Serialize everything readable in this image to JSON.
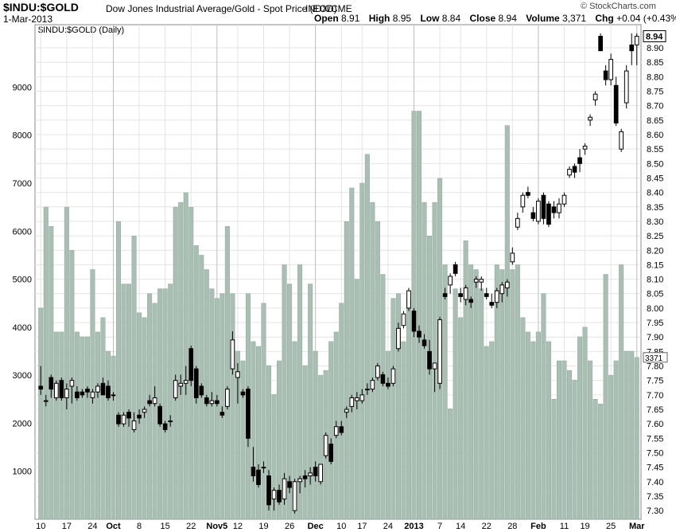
{
  "header": {
    "symbol": "$INDU:$GOLD",
    "name": "Dow Jones Industrial Average/Gold - Spot Price (EOD)",
    "exchange": "INDX/CME",
    "date": "1-Mar-2013",
    "brand": "© StockCharts.com",
    "open_label": "Open",
    "open": "8.91",
    "high_label": "High",
    "high": "8.95",
    "low_label": "Low",
    "low": "8.84",
    "close_label": "Close",
    "close": "8.94",
    "volume_label": "Volume",
    "volume": "3,371",
    "chg_label": "Chg",
    "chg": "+0.04 (+0.43%)"
  },
  "chart_data": {
    "type": "candlestick",
    "title": "$INDU:$GOLD (Daily)",
    "price_axis": {
      "ticks": [
        "7.30",
        "7.35",
        "7.40",
        "7.45",
        "7.50",
        "7.55",
        "7.60",
        "7.65",
        "7.70",
        "7.75",
        "7.80",
        "7.85",
        "7.90",
        "7.95",
        "8.00",
        "8.05",
        "8.10",
        "8.15",
        "8.20",
        "8.25",
        "8.30",
        "8.35",
        "8.40",
        "8.45",
        "8.50",
        "8.55",
        "8.60",
        "8.65",
        "8.70",
        "8.75",
        "8.80",
        "8.85",
        "8.90"
      ],
      "range": [
        7.27,
        8.98
      ],
      "last_value": "8.94"
    },
    "volume_axis": {
      "ticks": [
        "1000",
        "2000",
        "3000",
        "4000",
        "5000",
        "6000",
        "7000",
        "8000",
        "9000"
      ],
      "range": [
        0,
        10300
      ],
      "last_value": "3371"
    },
    "x_labels": [
      "10",
      "17",
      "24",
      "Oct",
      "8",
      "15",
      "22",
      "Nov5",
      "12",
      "19",
      "26",
      "Dec",
      "10",
      "17",
      "24",
      "2013",
      "7",
      "14",
      "22",
      "28",
      "Feb",
      "11",
      "19",
      "25",
      "Mar"
    ],
    "grid": true,
    "candles": [
      {
        "o": 7.73,
        "h": 7.8,
        "l": 7.7,
        "c": 7.72,
        "v": 4400
      },
      {
        "o": 7.68,
        "h": 7.7,
        "l": 7.66,
        "c": 7.68,
        "v": 6500
      },
      {
        "o": 7.76,
        "h": 7.77,
        "l": 7.69,
        "c": 7.72,
        "v": 6100
      },
      {
        "o": 7.69,
        "h": 7.75,
        "l": 7.68,
        "c": 7.74,
        "v": 3900
      },
      {
        "o": 7.75,
        "h": 7.76,
        "l": 7.68,
        "c": 7.69,
        "v": 3900
      },
      {
        "o": 7.69,
        "h": 7.74,
        "l": 7.65,
        "c": 7.72,
        "v": 6500
      },
      {
        "o": 7.73,
        "h": 7.76,
        "l": 7.67,
        "c": 7.75,
        "v": 5600
      },
      {
        "o": 7.71,
        "h": 7.73,
        "l": 7.68,
        "c": 7.69,
        "v": 3900
      },
      {
        "o": 7.71,
        "h": 7.72,
        "l": 7.69,
        "c": 7.7,
        "v": 3800
      },
      {
        "o": 7.72,
        "h": 7.73,
        "l": 7.69,
        "c": 7.71,
        "v": 3800
      },
      {
        "o": 7.69,
        "h": 7.72,
        "l": 7.67,
        "c": 7.71,
        "v": 5200
      },
      {
        "o": 7.71,
        "h": 7.74,
        "l": 7.69,
        "c": 7.73,
        "v": 3900
      },
      {
        "o": 7.74,
        "h": 7.76,
        "l": 7.7,
        "c": 7.7,
        "v": 4200
      },
      {
        "o": 7.73,
        "h": 7.75,
        "l": 7.68,
        "c": 7.69,
        "v": 3500
      },
      {
        "o": 7.7,
        "h": 7.71,
        "l": 7.68,
        "c": 7.7,
        "v": 3400
      },
      {
        "o": 7.63,
        "h": 7.64,
        "l": 7.59,
        "c": 7.6,
        "v": 6200
      },
      {
        "o": 7.6,
        "h": 7.64,
        "l": 7.59,
        "c": 7.63,
        "v": 4900
      },
      {
        "o": 7.64,
        "h": 7.65,
        "l": 7.59,
        "c": 7.62,
        "v": 4900
      },
      {
        "o": 7.58,
        "h": 7.64,
        "l": 7.57,
        "c": 7.61,
        "v": 5900
      },
      {
        "o": 7.63,
        "h": 7.65,
        "l": 7.6,
        "c": 7.62,
        "v": 4300
      },
      {
        "o": 7.64,
        "h": 7.66,
        "l": 7.62,
        "c": 7.65,
        "v": 4200
      },
      {
        "o": 7.68,
        "h": 7.7,
        "l": 7.66,
        "c": 7.67,
        "v": 4700
      },
      {
        "o": 7.67,
        "h": 7.73,
        "l": 7.66,
        "c": 7.69,
        "v": 4500
      },
      {
        "o": 7.66,
        "h": 7.67,
        "l": 7.59,
        "c": 7.6,
        "v": 4800
      },
      {
        "o": 7.6,
        "h": 7.61,
        "l": 7.57,
        "c": 7.58,
        "v": 4800
      },
      {
        "o": 7.61,
        "h": 7.63,
        "l": 7.59,
        "c": 7.61,
        "v": 4900
      },
      {
        "o": 7.69,
        "h": 7.77,
        "l": 7.68,
        "c": 7.75,
        "v": 6500
      },
      {
        "o": 7.73,
        "h": 7.77,
        "l": 7.7,
        "c": 7.74,
        "v": 6600
      },
      {
        "o": 7.74,
        "h": 7.8,
        "l": 7.7,
        "c": 7.75,
        "v": 6800
      },
      {
        "o": 7.86,
        "h": 7.87,
        "l": 7.73,
        "c": 7.75,
        "v": 6500
      },
      {
        "o": 7.79,
        "h": 7.8,
        "l": 7.67,
        "c": 7.69,
        "v": 5700
      },
      {
        "o": 7.73,
        "h": 7.74,
        "l": 7.69,
        "c": 7.7,
        "v": 5500
      },
      {
        "o": 7.69,
        "h": 7.7,
        "l": 7.66,
        "c": 7.67,
        "v": 5200
      },
      {
        "o": 7.67,
        "h": 7.71,
        "l": 7.66,
        "c": 7.68,
        "v": 4800
      },
      {
        "o": 7.68,
        "h": 7.7,
        "l": 7.66,
        "c": 7.67,
        "v": 4600
      },
      {
        "o": 7.64,
        "h": 7.66,
        "l": 7.62,
        "c": 7.63,
        "v": 4700
      },
      {
        "o": 7.66,
        "h": 7.73,
        "l": 7.65,
        "c": 7.72,
        "v": 6100
      },
      {
        "o": 7.79,
        "h": 7.92,
        "l": 7.77,
        "c": 7.89,
        "v": 4700
      },
      {
        "o": 7.76,
        "h": 7.81,
        "l": 7.67,
        "c": 7.78,
        "v": 3500
      },
      {
        "o": 7.71,
        "h": 7.72,
        "l": 7.69,
        "c": 7.7,
        "v": 3300
      },
      {
        "o": 7.72,
        "h": 7.73,
        "l": 7.52,
        "c": 7.55,
        "v": 4700
      },
      {
        "o": 7.45,
        "h": 7.52,
        "l": 7.4,
        "c": 7.42,
        "v": 3700
      },
      {
        "o": 7.44,
        "h": 7.46,
        "l": 7.38,
        "c": 7.39,
        "v": 3600
      },
      {
        "o": 7.45,
        "h": 7.47,
        "l": 7.43,
        "c": 7.45,
        "v": 4500
      },
      {
        "o": 7.42,
        "h": 7.44,
        "l": 7.3,
        "c": 7.32,
        "v": 3200
      },
      {
        "o": 7.34,
        "h": 7.38,
        "l": 7.3,
        "c": 7.37,
        "v": 2600
      },
      {
        "o": 7.37,
        "h": 7.39,
        "l": 7.32,
        "c": 7.33,
        "v": 3300
      },
      {
        "o": 7.34,
        "h": 7.43,
        "l": 7.32,
        "c": 7.41,
        "v": 5300
      },
      {
        "o": 7.4,
        "h": 7.42,
        "l": 7.36,
        "c": 7.38,
        "v": 4900
      },
      {
        "o": 7.3,
        "h": 7.41,
        "l": 7.29,
        "c": 7.4,
        "v": 3700
      },
      {
        "o": 7.4,
        "h": 7.42,
        "l": 7.36,
        "c": 7.41,
        "v": 5300
      },
      {
        "o": 7.42,
        "h": 7.44,
        "l": 7.38,
        "c": 7.41,
        "v": 3200
      },
      {
        "o": 7.42,
        "h": 7.45,
        "l": 7.39,
        "c": 7.43,
        "v": 4900
      },
      {
        "o": 7.45,
        "h": 7.47,
        "l": 7.4,
        "c": 7.42,
        "v": 3500
      },
      {
        "o": 7.4,
        "h": 7.46,
        "l": 7.39,
        "c": 7.46,
        "v": 3000
      },
      {
        "o": 7.49,
        "h": 7.57,
        "l": 7.48,
        "c": 7.56,
        "v": 3100
      },
      {
        "o": 7.53,
        "h": 7.55,
        "l": 7.46,
        "c": 7.47,
        "v": 3700
      },
      {
        "o": 7.56,
        "h": 7.61,
        "l": 7.55,
        "c": 7.59,
        "v": 3900
      },
      {
        "o": 7.59,
        "h": 7.61,
        "l": 7.56,
        "c": 7.57,
        "v": 4500
      },
      {
        "o": 7.64,
        "h": 7.66,
        "l": 7.62,
        "c": 7.65,
        "v": 6200
      },
      {
        "o": 7.66,
        "h": 7.7,
        "l": 7.64,
        "c": 7.69,
        "v": 6900
      },
      {
        "o": 7.68,
        "h": 7.71,
        "l": 7.65,
        "c": 7.69,
        "v": 5000
      },
      {
        "o": 7.68,
        "h": 7.72,
        "l": 7.67,
        "c": 7.7,
        "v": 7000
      },
      {
        "o": 7.72,
        "h": 7.74,
        "l": 7.7,
        "c": 7.72,
        "v": 7600
      },
      {
        "o": 7.72,
        "h": 7.76,
        "l": 7.71,
        "c": 7.75,
        "v": 6600
      },
      {
        "o": 7.76,
        "h": 7.81,
        "l": 7.75,
        "c": 7.8,
        "v": 6200
      },
      {
        "o": 7.77,
        "h": 7.78,
        "l": 7.73,
        "c": 7.74,
        "v": 5100
      },
      {
        "o": 7.74,
        "h": 7.76,
        "l": 7.72,
        "c": 7.73,
        "v": 3500
      },
      {
        "o": 7.74,
        "h": 7.8,
        "l": 7.73,
        "c": 7.79,
        "v": 4600
      },
      {
        "o": 7.86,
        "h": 7.95,
        "l": 7.85,
        "c": 7.93,
        "v": 4700
      },
      {
        "o": 7.94,
        "h": 7.99,
        "l": 7.93,
        "c": 7.98,
        "v": 3700
      },
      {
        "o": 8.0,
        "h": 8.07,
        "l": 7.99,
        "c": 8.06,
        "v": 4600
      },
      {
        "o": 7.99,
        "h": 8.0,
        "l": 7.9,
        "c": 7.92,
        "v": 8500
      },
      {
        "o": 7.92,
        "h": 7.94,
        "l": 7.88,
        "c": 7.9,
        "v": 8500
      },
      {
        "o": 7.89,
        "h": 7.91,
        "l": 7.86,
        "c": 7.87,
        "v": 6600
      },
      {
        "o": 7.85,
        "h": 7.89,
        "l": 7.77,
        "c": 7.79,
        "v": 5900
      },
      {
        "o": 7.79,
        "h": 7.8,
        "l": 7.71,
        "c": 7.81,
        "v": 6600
      },
      {
        "o": 7.74,
        "h": 7.97,
        "l": 7.72,
        "c": 7.96,
        "v": 7100
      },
      {
        "o": 8.05,
        "h": 8.07,
        "l": 8.03,
        "c": 8.04,
        "v": 5300
      },
      {
        "o": 8.08,
        "h": 8.12,
        "l": 8.05,
        "c": 8.11,
        "v": 2300
      },
      {
        "o": 8.15,
        "h": 8.16,
        "l": 8.11,
        "c": 8.12,
        "v": 4800
      },
      {
        "o": 8.05,
        "h": 8.07,
        "l": 8.02,
        "c": 8.04,
        "v": 4200
      },
      {
        "o": 8.03,
        "h": 8.08,
        "l": 8.01,
        "c": 8.07,
        "v": 5800
      },
      {
        "o": 8.03,
        "h": 8.04,
        "l": 8.0,
        "c": 8.02,
        "v": 5300
      },
      {
        "o": 8.09,
        "h": 8.11,
        "l": 8.07,
        "c": 8.1,
        "v": 5200
      },
      {
        "o": 8.09,
        "h": 8.11,
        "l": 8.06,
        "c": 8.1,
        "v": 4800
      },
      {
        "o": 8.05,
        "h": 8.07,
        "l": 8.03,
        "c": 8.04,
        "v": 3600
      },
      {
        "o": 8.02,
        "h": 8.05,
        "l": 8.0,
        "c": 8.01,
        "v": 3700
      },
      {
        "o": 8.02,
        "h": 8.07,
        "l": 8.0,
        "c": 8.06,
        "v": 5300
      },
      {
        "o": 8.05,
        "h": 8.09,
        "l": 8.02,
        "c": 8.08,
        "v": 5200
      },
      {
        "o": 8.07,
        "h": 8.1,
        "l": 8.04,
        "c": 8.09,
        "v": 8200
      },
      {
        "o": 8.16,
        "h": 8.21,
        "l": 8.15,
        "c": 8.19,
        "v": 5200
      },
      {
        "o": 8.28,
        "h": 8.33,
        "l": 8.27,
        "c": 8.31,
        "v": 5300
      },
      {
        "o": 8.35,
        "h": 8.4,
        "l": 8.33,
        "c": 8.39,
        "v": 4200
      },
      {
        "o": 8.4,
        "h": 8.42,
        "l": 8.38,
        "c": 8.39,
        "v": 3900
      },
      {
        "o": 8.33,
        "h": 8.35,
        "l": 8.3,
        "c": 8.31,
        "v": 3700
      },
      {
        "o": 8.3,
        "h": 8.38,
        "l": 8.29,
        "c": 8.37,
        "v": 3900
      },
      {
        "o": 8.39,
        "h": 8.4,
        "l": 8.29,
        "c": 8.31,
        "v": 4700
      },
      {
        "o": 8.36,
        "h": 8.37,
        "l": 8.28,
        "c": 8.29,
        "v": 3700
      },
      {
        "o": 8.35,
        "h": 8.37,
        "l": 8.31,
        "c": 8.33,
        "v": 2500
      },
      {
        "o": 8.33,
        "h": 8.38,
        "l": 8.31,
        "c": 8.36,
        "v": 3300
      },
      {
        "o": 8.36,
        "h": 8.4,
        "l": 8.35,
        "c": 8.39,
        "v": 3300
      },
      {
        "o": 8.46,
        "h": 8.49,
        "l": 8.45,
        "c": 8.48,
        "v": 3100
      },
      {
        "o": 8.49,
        "h": 8.5,
        "l": 8.45,
        "c": 8.47,
        "v": 2900
      },
      {
        "o": 8.52,
        "h": 8.55,
        "l": 8.47,
        "c": 8.5,
        "v": 3800
      },
      {
        "o": 8.55,
        "h": 8.57,
        "l": 8.53,
        "c": 8.56,
        "v": 4000
      },
      {
        "o": 8.65,
        "h": 8.67,
        "l": 8.63,
        "c": 8.66,
        "v": 3300
      },
      {
        "o": 8.72,
        "h": 8.75,
        "l": 8.7,
        "c": 8.74,
        "v": 2500
      },
      {
        "o": 8.94,
        "h": 8.95,
        "l": 8.89,
        "c": 8.89,
        "v": 2400
      },
      {
        "o": 8.82,
        "h": 8.84,
        "l": 8.77,
        "c": 8.79,
        "v": 5100
      },
      {
        "o": 8.79,
        "h": 8.88,
        "l": 8.77,
        "c": 8.86,
        "v": 3000
      },
      {
        "o": 8.77,
        "h": 8.8,
        "l": 8.63,
        "c": 8.64,
        "v": 3300
      },
      {
        "o": 8.55,
        "h": 8.62,
        "l": 8.54,
        "c": 8.61,
        "v": 5300
      },
      {
        "o": 8.71,
        "h": 8.84,
        "l": 8.69,
        "c": 8.82,
        "v": 3500
      },
      {
        "o": 8.91,
        "h": 8.95,
        "l": 8.84,
        "c": 8.89,
        "v": 3500
      },
      {
        "o": 8.91,
        "h": 8.95,
        "l": 8.84,
        "c": 8.94,
        "v": 3371
      }
    ]
  }
}
